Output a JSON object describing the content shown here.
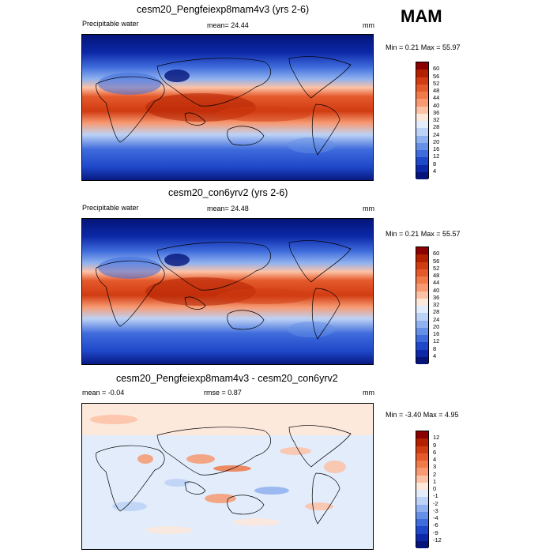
{
  "season": "MAM",
  "panels": [
    {
      "title": "cesm20_Pengfeiexp8mam4v3 (yrs 2-6)",
      "variable": "Precipitable water",
      "stat": "mean=  24.44",
      "units": "mm",
      "minmax": "Min =   0.21 Max =  55.97"
    },
    {
      "title": "cesm20_con6yrv2 (yrs 2-6)",
      "variable": "Precipitable water",
      "stat": "mean=  24.48",
      "units": "mm",
      "minmax": "Min =   0.21 Max =  55.57"
    },
    {
      "title": "cesm20_Pengfeiexp8mam4v3 - cesm20_con6yrv2",
      "variable": "mean =  -0.04",
      "stat": "rmse =   0.87",
      "units": "mm",
      "minmax": "Min =  -3.40 Max =   4.95"
    }
  ],
  "colorbars": {
    "field": {
      "ticks": [
        "60",
        "56",
        "52",
        "48",
        "44",
        "40",
        "36",
        "32",
        "28",
        "24",
        "20",
        "16",
        "12",
        "8",
        "4"
      ],
      "colors": [
        "#8b0000",
        "#b22000",
        "#d23c12",
        "#e55a2c",
        "#f07a4a",
        "#f79a72",
        "#fcc2a6",
        "#fde8dc",
        "#e2ecfb",
        "#bcd2f6",
        "#8fb1ef",
        "#6590e6",
        "#3f6cdc",
        "#1f47c9",
        "#0c28a8",
        "#041479"
      ]
    },
    "diff": {
      "ticks": [
        "12",
        "9",
        "6",
        "4",
        "3",
        "2",
        "1",
        "0",
        "-1",
        "-2",
        "-3",
        "-4",
        "-6",
        "-9",
        "-12"
      ],
      "colors": [
        "#8b0000",
        "#b22000",
        "#d23c12",
        "#e55a2c",
        "#f07a4a",
        "#f79a72",
        "#fcc2a6",
        "#fde8dc",
        "#e2ecfb",
        "#bcd2f6",
        "#8fb1ef",
        "#6590e6",
        "#3f6cdc",
        "#1f47c9",
        "#0c28a8",
        "#041479"
      ]
    }
  }
}
